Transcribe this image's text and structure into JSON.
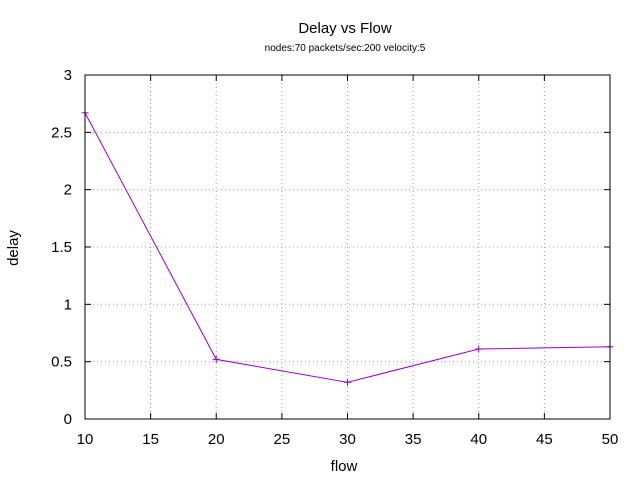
{
  "chart_data": {
    "type": "line",
    "title": "Delay vs Flow",
    "subtitle": "nodes:70  packets/sec:200  velocity:5",
    "xlabel": "flow",
    "ylabel": "delay",
    "xlim": [
      10,
      50
    ],
    "ylim": [
      0,
      3
    ],
    "xticks": [
      "10",
      "15",
      "20",
      "25",
      "30",
      "35",
      "40",
      "45",
      "50"
    ],
    "yticks": [
      "0",
      "0.5",
      "1",
      "1.5",
      "2",
      "2.5",
      "3"
    ],
    "grid": true,
    "series": [
      {
        "x": [
          10,
          20,
          30,
          40,
          50
        ],
        "y": [
          2.67,
          0.52,
          0.32,
          0.61,
          0.63
        ],
        "color": "#9400d3"
      }
    ]
  }
}
